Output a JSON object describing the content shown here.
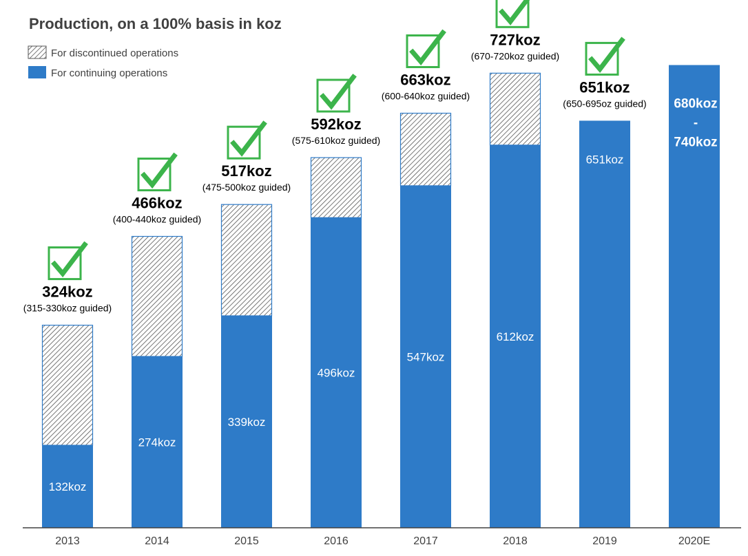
{
  "chart_data": {
    "type": "bar",
    "stacked": true,
    "title": "Production, on a 100% basis in koz",
    "legend": [
      {
        "label": "For discontinued operations",
        "pattern": "hatched"
      },
      {
        "label": "For continuing operations",
        "color": "#2e7bc8"
      }
    ],
    "categories": [
      "2013",
      "2014",
      "2015",
      "2016",
      "2017",
      "2018",
      "2019",
      "2020E"
    ],
    "series": [
      {
        "name": "For continuing operations",
        "values": [
          132,
          274,
          339,
          496,
          547,
          612,
          651,
          680
        ],
        "color": "#2e7bc8"
      },
      {
        "name": "For discontinued operations",
        "values": [
          192,
          192,
          178,
          96,
          116,
          115,
          0,
          0
        ],
        "pattern": "hatched"
      }
    ],
    "inner_labels": [
      "132koz",
      "274koz",
      "339koz",
      "496koz",
      "547koz",
      "612koz",
      "651koz",
      ""
    ],
    "totals": [
      324,
      466,
      517,
      592,
      663,
      727,
      651,
      null
    ],
    "total_labels": [
      "324koz",
      "466koz",
      "517koz",
      "592koz",
      "663koz",
      "727koz",
      "651koz",
      ""
    ],
    "guidance_labels": [
      "(315-330koz guided)",
      "(400-440koz guided)",
      "(475-500koz guided)",
      "(575-610koz guided)",
      "(600-640koz guided)",
      "(670-720koz guided)",
      "(650-695oz guided)",
      ""
    ],
    "checkmarks": [
      true,
      true,
      true,
      true,
      true,
      true,
      true,
      false
    ],
    "estimate": {
      "category": "2020E",
      "low": 680,
      "high": 740,
      "label_lines": [
        "680koz",
        "-",
        "740koz"
      ]
    },
    "ylim": [
      0,
      800
    ],
    "grid": false,
    "legend_position": "top-left",
    "colors": {
      "continuing": "#2e7bc8",
      "hatch": "#555555",
      "check": "#3cb44b",
      "axis": "#404040"
    }
  }
}
